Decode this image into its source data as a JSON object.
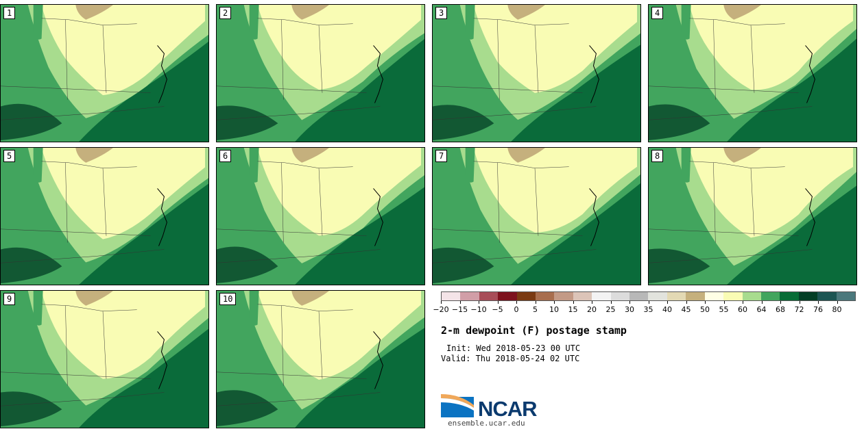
{
  "panels": [
    {
      "label": "1"
    },
    {
      "label": "2"
    },
    {
      "label": "3"
    },
    {
      "label": "4"
    },
    {
      "label": "5"
    },
    {
      "label": "6"
    },
    {
      "label": "7"
    },
    {
      "label": "8"
    },
    {
      "label": "9"
    },
    {
      "label": "10"
    }
  ],
  "colorbar": {
    "colors": [
      "#f4e4e8",
      "#d19ea7",
      "#a84d58",
      "#7d121d",
      "#7a3a12",
      "#a86e4e",
      "#c39a86",
      "#dcc4b8",
      "#f3f3f3",
      "#dcdcdc",
      "#b8b8b8",
      "#e2e3dd",
      "#e3d9b4",
      "#c5b07d",
      "#fefee5",
      "#f9fcb4",
      "#a8dc8e",
      "#42a55e",
      "#076c36",
      "#033f26",
      "#1c5553",
      "#4b787c"
    ],
    "tick_labels": [
      "−20",
      "−15",
      "−10",
      "−5",
      "0",
      "5",
      "10",
      "15",
      "20",
      "25",
      "30",
      "35",
      "40",
      "45",
      "50",
      "55",
      "60",
      "64",
      "68",
      "72",
      "76",
      "80"
    ]
  },
  "title": "2-m dewpoint (F) postage stamp",
  "init": "Init: Wed 2018-05-23 00 UTC",
  "valid": "Valid: Thu 2018-05-24 02 UTC",
  "logo_text": "NCAR",
  "url": "ensemble.ucar.edu"
}
